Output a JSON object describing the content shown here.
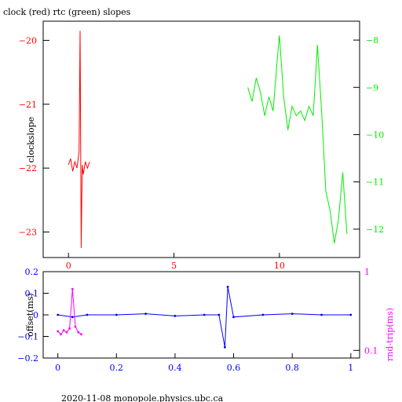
{
  "header": {
    "title": "clock (red) rtc (green) slopes"
  },
  "footer": {
    "text": "2020-11-08  monopole.physics.ubc.ca"
  },
  "colors": {
    "clock": "#ff0000",
    "rtc": "#00ee00",
    "offset": "#0000ff",
    "rndtrip": "#ff00ff",
    "axis": "#000000"
  },
  "chart_data": [
    {
      "type": "line",
      "title": "clock (red) rtc (green) slopes",
      "ylabel_left": "clockslope",
      "xlim": [
        -1.2,
        13.8
      ],
      "ylim_left": [
        -23.4,
        -19.7
      ],
      "ylim_right": [
        -12.6,
        -7.6
      ],
      "x_ticks": [
        0,
        5,
        10
      ],
      "y_left_ticks": [
        -20,
        -21,
        -22,
        -23
      ],
      "y_right_ticks": [
        -8,
        -9,
        -10,
        -11,
        -12
      ],
      "grid": false,
      "series": [
        {
          "name": "clock",
          "axis": "left",
          "x": [
            0,
            0.1,
            0.2,
            0.3,
            0.4,
            0.5,
            0.55,
            0.6,
            0.65,
            0.7,
            0.8,
            0.9,
            1.0
          ],
          "y": [
            -21.95,
            -21.85,
            -22.05,
            -21.9,
            -22.0,
            -21.75,
            -19.85,
            -23.25,
            -21.95,
            -22.1,
            -21.9,
            -22.0,
            -21.9
          ]
        },
        {
          "name": "rtc",
          "axis": "right",
          "x": [
            8.5,
            8.7,
            8.9,
            9.1,
            9.3,
            9.5,
            9.7,
            9.9,
            10.0,
            10.2,
            10.4,
            10.6,
            10.8,
            11.0,
            11.2,
            11.4,
            11.6,
            11.8,
            12.0,
            12.2,
            12.4,
            12.6,
            12.8,
            13.0,
            13.2
          ],
          "y": [
            -9.0,
            -9.3,
            -8.8,
            -9.1,
            -9.6,
            -9.2,
            -9.5,
            -8.4,
            -7.9,
            -9.2,
            -9.9,
            -9.4,
            -9.6,
            -9.5,
            -9.7,
            -9.4,
            -9.6,
            -8.1,
            -9.5,
            -11.2,
            -11.6,
            -12.3,
            -11.8,
            -10.8,
            -12.1
          ]
        }
      ]
    },
    {
      "type": "scatter",
      "ylabel_left": "offset(ms)",
      "ylabel_right": "rnd-trip(ms)",
      "xlim": [
        -0.05,
        1.03
      ],
      "ylim_left": [
        -0.2,
        0.2
      ],
      "ylim_right_log": [
        0.08,
        1
      ],
      "x_ticks": [
        0,
        0.2,
        0.4,
        0.6,
        0.8,
        1
      ],
      "x_tick_labels": [
        "0",
        "0.2",
        "0.4",
        "0.6",
        "0.8",
        "1"
      ],
      "y_left_ticks": [
        0.2,
        0.1,
        0,
        -0.1,
        -0.2
      ],
      "y_left_tick_labels": [
        "0.2",
        "0.1",
        "0",
        "−0.1",
        "−0.2"
      ],
      "y_right_ticks": [
        1,
        0.1
      ],
      "y_right_tick_labels": [
        "1",
        "0.1"
      ],
      "grid": false,
      "series": [
        {
          "name": "offset",
          "axis": "left",
          "x": [
            0,
            0.05,
            0.1,
            0.2,
            0.3,
            0.4,
            0.5,
            0.55,
            0.57,
            0.58,
            0.6,
            0.7,
            0.8,
            0.9,
            1.0
          ],
          "y": [
            0.0,
            -0.01,
            0.0,
            0.0,
            0.005,
            -0.005,
            0.0,
            0.0,
            -0.15,
            0.13,
            -0.01,
            0.0,
            0.005,
            0.0,
            0.0
          ]
        },
        {
          "name": "rnd-trip",
          "axis": "right",
          "x": [
            0,
            0.01,
            0.02,
            0.03,
            0.04,
            0.05,
            0.06,
            0.07,
            0.08
          ],
          "y": [
            0.175,
            0.16,
            0.18,
            0.17,
            0.19,
            0.6,
            0.2,
            0.17,
            0.16
          ]
        }
      ]
    }
  ]
}
